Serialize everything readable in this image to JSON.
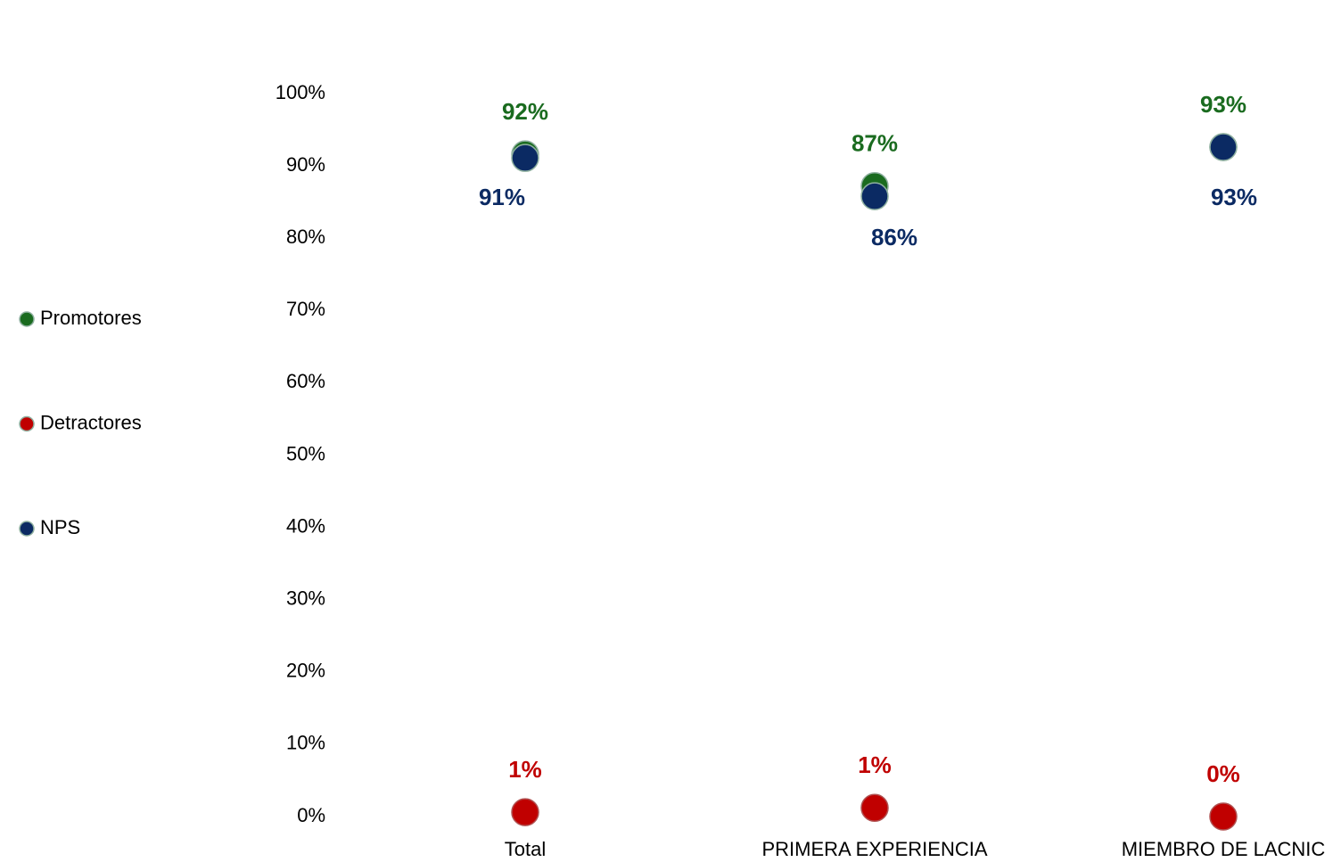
{
  "chart_data": {
    "type": "dot",
    "categories": [
      "Total",
      "PRIMERA EXPERIENCIA",
      "MIEMBRO DE LACNIC"
    ],
    "series": [
      {
        "name": "Promotores",
        "color": "#1a6b1f",
        "values": [
          91.6,
          87.2,
          92.6
        ],
        "value_labels": [
          "92%",
          "87%",
          "93%"
        ]
      },
      {
        "name": "Detractores",
        "color": "#c00000",
        "values": [
          0.6,
          1.2,
          0
        ],
        "value_labels": [
          "1%",
          "1%",
          "0%"
        ]
      },
      {
        "name": "NPS",
        "color": "#0b2a63",
        "values": [
          91.1,
          85.8,
          92.6
        ],
        "value_labels": [
          "91%",
          "86%",
          "93%"
        ]
      }
    ],
    "ylim": [
      0,
      100
    ],
    "yticks": [
      {
        "value": 0,
        "label": "0%"
      },
      {
        "value": 10,
        "label": "10%"
      },
      {
        "value": 20,
        "label": "20%"
      },
      {
        "value": 30,
        "label": "30%"
      },
      {
        "value": 40,
        "label": "40%"
      },
      {
        "value": 50,
        "label": "50%"
      },
      {
        "value": 60,
        "label": "60%"
      },
      {
        "value": 70,
        "label": "70%"
      },
      {
        "value": 80,
        "label": "80%"
      },
      {
        "value": 90,
        "label": "90%"
      },
      {
        "value": 100,
        "label": "100%"
      }
    ],
    "grid": false,
    "legend": "left"
  }
}
